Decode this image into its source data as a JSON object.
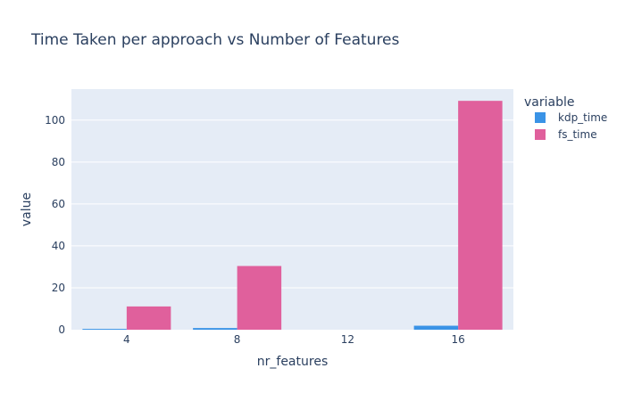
{
  "chart_data": {
    "type": "bar",
    "title": "Time Taken per approach vs Number of Features",
    "xlabel": "nr_features",
    "ylabel": "value",
    "categories": [
      "4",
      "8",
      "12",
      "16"
    ],
    "x": [
      4,
      8,
      12,
      16
    ],
    "xlim": [
      2,
      18
    ],
    "ylim": [
      0,
      114.8
    ],
    "yticks": [
      0,
      20,
      40,
      60,
      80,
      100
    ],
    "xticks": [
      4,
      8,
      12,
      16
    ],
    "grid": true,
    "legend_title": "variable",
    "legend_position": "right",
    "series": [
      {
        "name": "kdp_time",
        "values": [
          0.4,
          0.8,
          null,
          1.9
        ],
        "color": "#3a93e6"
      },
      {
        "name": "fs_time",
        "values": [
          11.1,
          30.4,
          null,
          109.2
        ],
        "color": "#e0609c"
      }
    ]
  },
  "colors": {
    "plot_background": "#e5ecf6",
    "grid": "#ffffff",
    "text": "#2a3f5f"
  }
}
